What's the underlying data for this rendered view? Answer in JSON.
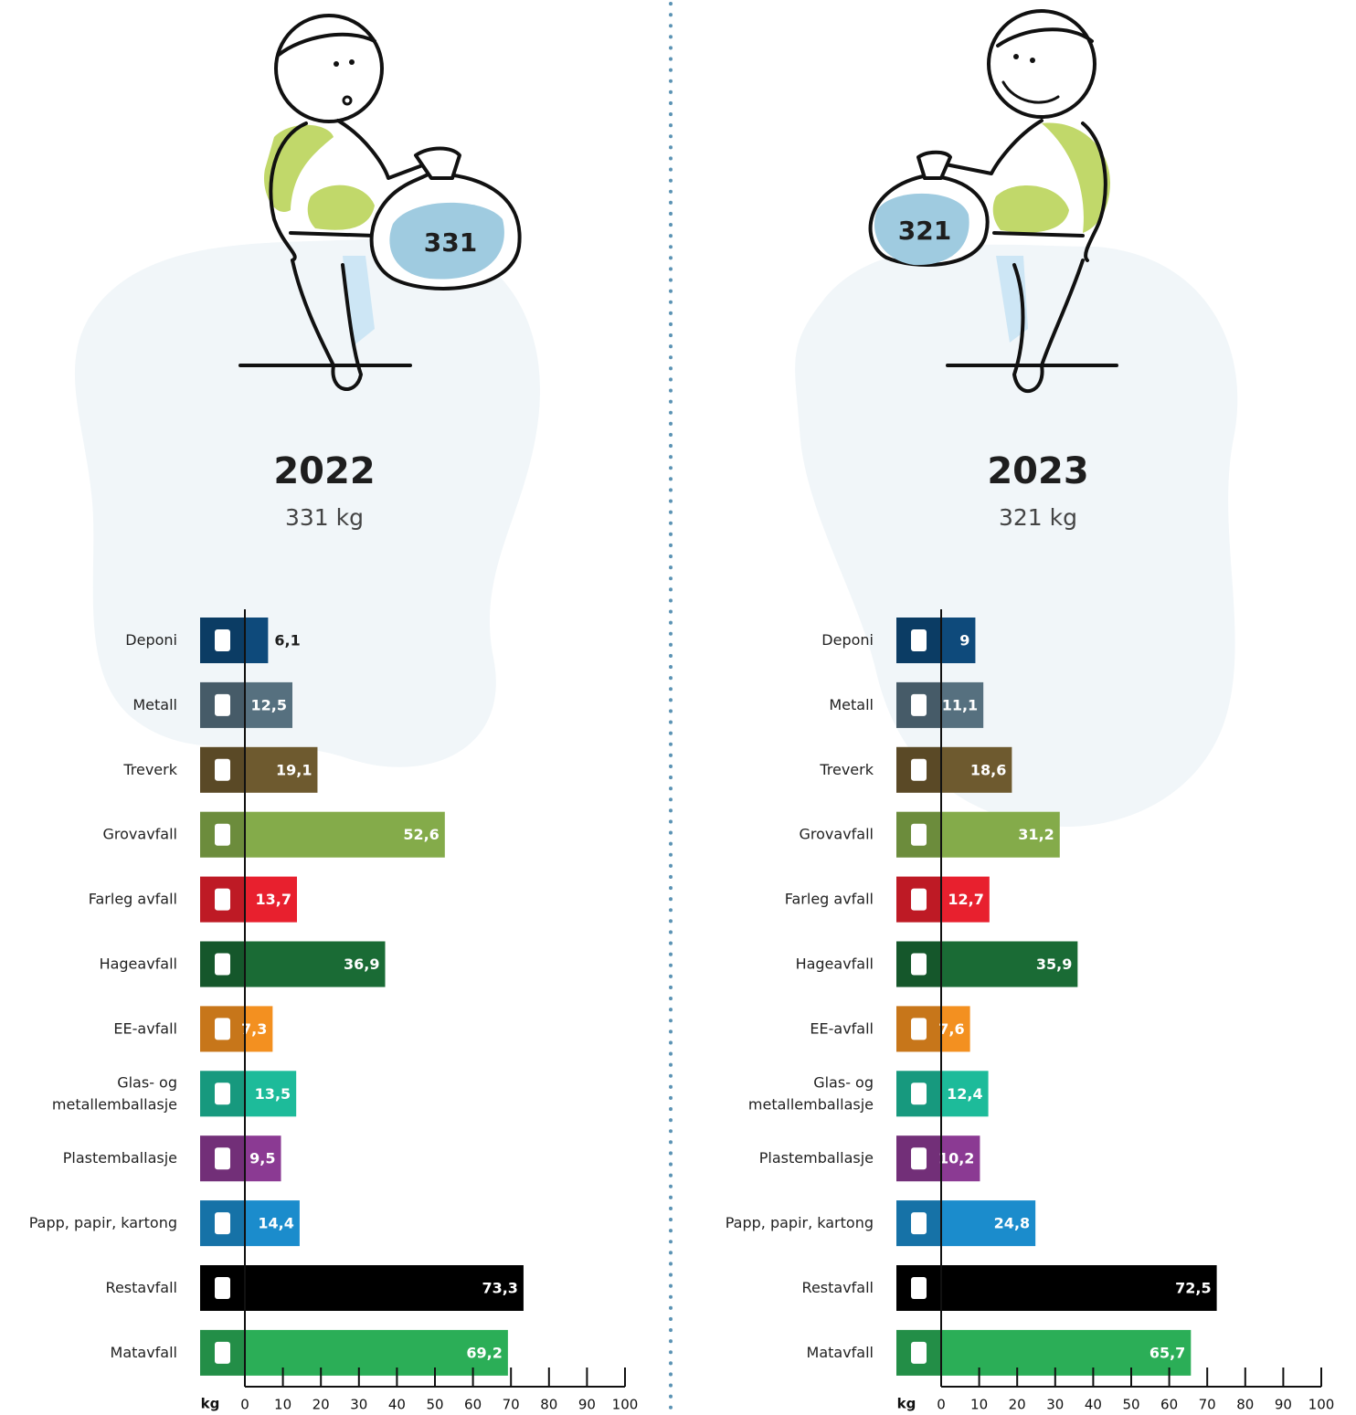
{
  "chart_data": [
    {
      "type": "bar",
      "orientation": "horizontal",
      "title": "2022",
      "subtitle": "331 kg",
      "annotation": "331",
      "categories": [
        "Deponi",
        "Metall",
        "Treverk",
        "Grovavfall",
        "Farleg avfall",
        "Hageavfall",
        "EE-avfall",
        "Glas- og\nmetallemballasje",
        "Plastemballasje",
        "Papp, papir, kartong",
        "Restavfall",
        "Matavfall"
      ],
      "values": [
        6.1,
        12.5,
        19.1,
        52.6,
        13.7,
        36.9,
        7.3,
        13.5,
        9.5,
        14.4,
        73.3,
        69.2
      ],
      "value_labels": [
        "6,1",
        "12,5",
        "19,1",
        "52,6",
        "13,7",
        "36,9",
        "7,3",
        "13,5",
        "9,5",
        "14,4",
        "73,3",
        "69,2"
      ],
      "colors": [
        "#0e4a7b",
        "#56707f",
        "#6e5a2f",
        "#84ab4a",
        "#e8202e",
        "#1a6b35",
        "#f39020",
        "#1dbb9a",
        "#8b3a93",
        "#1b8ccc",
        "#000000",
        "#2bae57"
      ],
      "xlabel": "kg",
      "xlim": [
        0,
        100
      ],
      "xticks": [
        0,
        10,
        20,
        30,
        40,
        50,
        60,
        70,
        80,
        90,
        100
      ]
    },
    {
      "type": "bar",
      "orientation": "horizontal",
      "title": "2023",
      "subtitle": "321 kg",
      "annotation": "321",
      "categories": [
        "Deponi",
        "Metall",
        "Treverk",
        "Grovavfall",
        "Farleg avfall",
        "Hageavfall",
        "EE-avfall",
        "Glas- og\nmetallemballasje",
        "Plastemballasje",
        "Papp, papir, kartong",
        "Restavfall",
        "Matavfall"
      ],
      "values": [
        9,
        11.1,
        18.6,
        31.2,
        12.7,
        35.9,
        7.6,
        12.4,
        10.2,
        24.8,
        72.5,
        65.7
      ],
      "value_labels": [
        "9",
        "11,1",
        "18,6",
        "31,2",
        "12,7",
        "35,9",
        "7,6",
        "12,4",
        "10,2",
        "24,8",
        "72,5",
        "65,7"
      ],
      "colors": [
        "#0e4a7b",
        "#56707f",
        "#6e5a2f",
        "#84ab4a",
        "#e8202e",
        "#1a6b35",
        "#f39020",
        "#1dbb9a",
        "#8b3a93",
        "#1b8ccc",
        "#000000",
        "#2bae57"
      ],
      "xlabel": "kg",
      "xlim": [
        0,
        100
      ],
      "xticks": [
        0,
        10,
        20,
        30,
        40,
        50,
        60,
        70,
        80,
        90,
        100
      ]
    }
  ]
}
